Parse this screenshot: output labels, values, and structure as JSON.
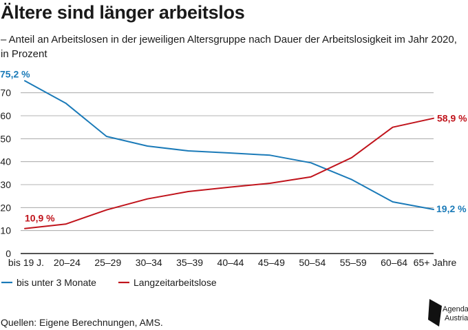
{
  "title": "Ältere sind länger arbeitslos",
  "subtitle": "– Anteil an Arbeitslosen in der jeweiligen Altersgruppe nach Dauer der Arbeitslosigkeit im Jahr 2020, in Prozent",
  "source": "Quellen: Eigene Berechnungen, AMS.",
  "logo": {
    "line1": "Agenda",
    "line2": "Austria"
  },
  "chart_data": {
    "type": "line",
    "categories": [
      "bis 19 J.",
      "20–24",
      "25–29",
      "30–34",
      "35–39",
      "40–44",
      "45–49",
      "50–54",
      "55–59",
      "60–64",
      "65+ Jahre"
    ],
    "ylim": [
      0,
      75
    ],
    "yticks": [
      0,
      10,
      20,
      30,
      40,
      50,
      60,
      70
    ],
    "grid": true,
    "legend_position": "bottom-left",
    "series": [
      {
        "name": "bis unter 3 Monate",
        "color": "#1a7ab8",
        "values": [
          75.2,
          65.5,
          51,
          46.8,
          44.7,
          43.8,
          42.8,
          39.5,
          32.2,
          22.5,
          19.2
        ]
      },
      {
        "name": "Langzeitarbeitslose",
        "color": "#c0131b",
        "values": [
          10.9,
          12.8,
          19,
          23.8,
          27,
          28.9,
          30.6,
          33.4,
          41.8,
          55,
          58.9
        ]
      }
    ],
    "annotations": [
      {
        "series": 0,
        "index": 0,
        "text": "75,2 %"
      },
      {
        "series": 0,
        "index": 10,
        "text": "19,2 %"
      },
      {
        "series": 1,
        "index": 0,
        "text": "10,9 %"
      },
      {
        "series": 1,
        "index": 10,
        "text": "58,9 %"
      }
    ]
  }
}
